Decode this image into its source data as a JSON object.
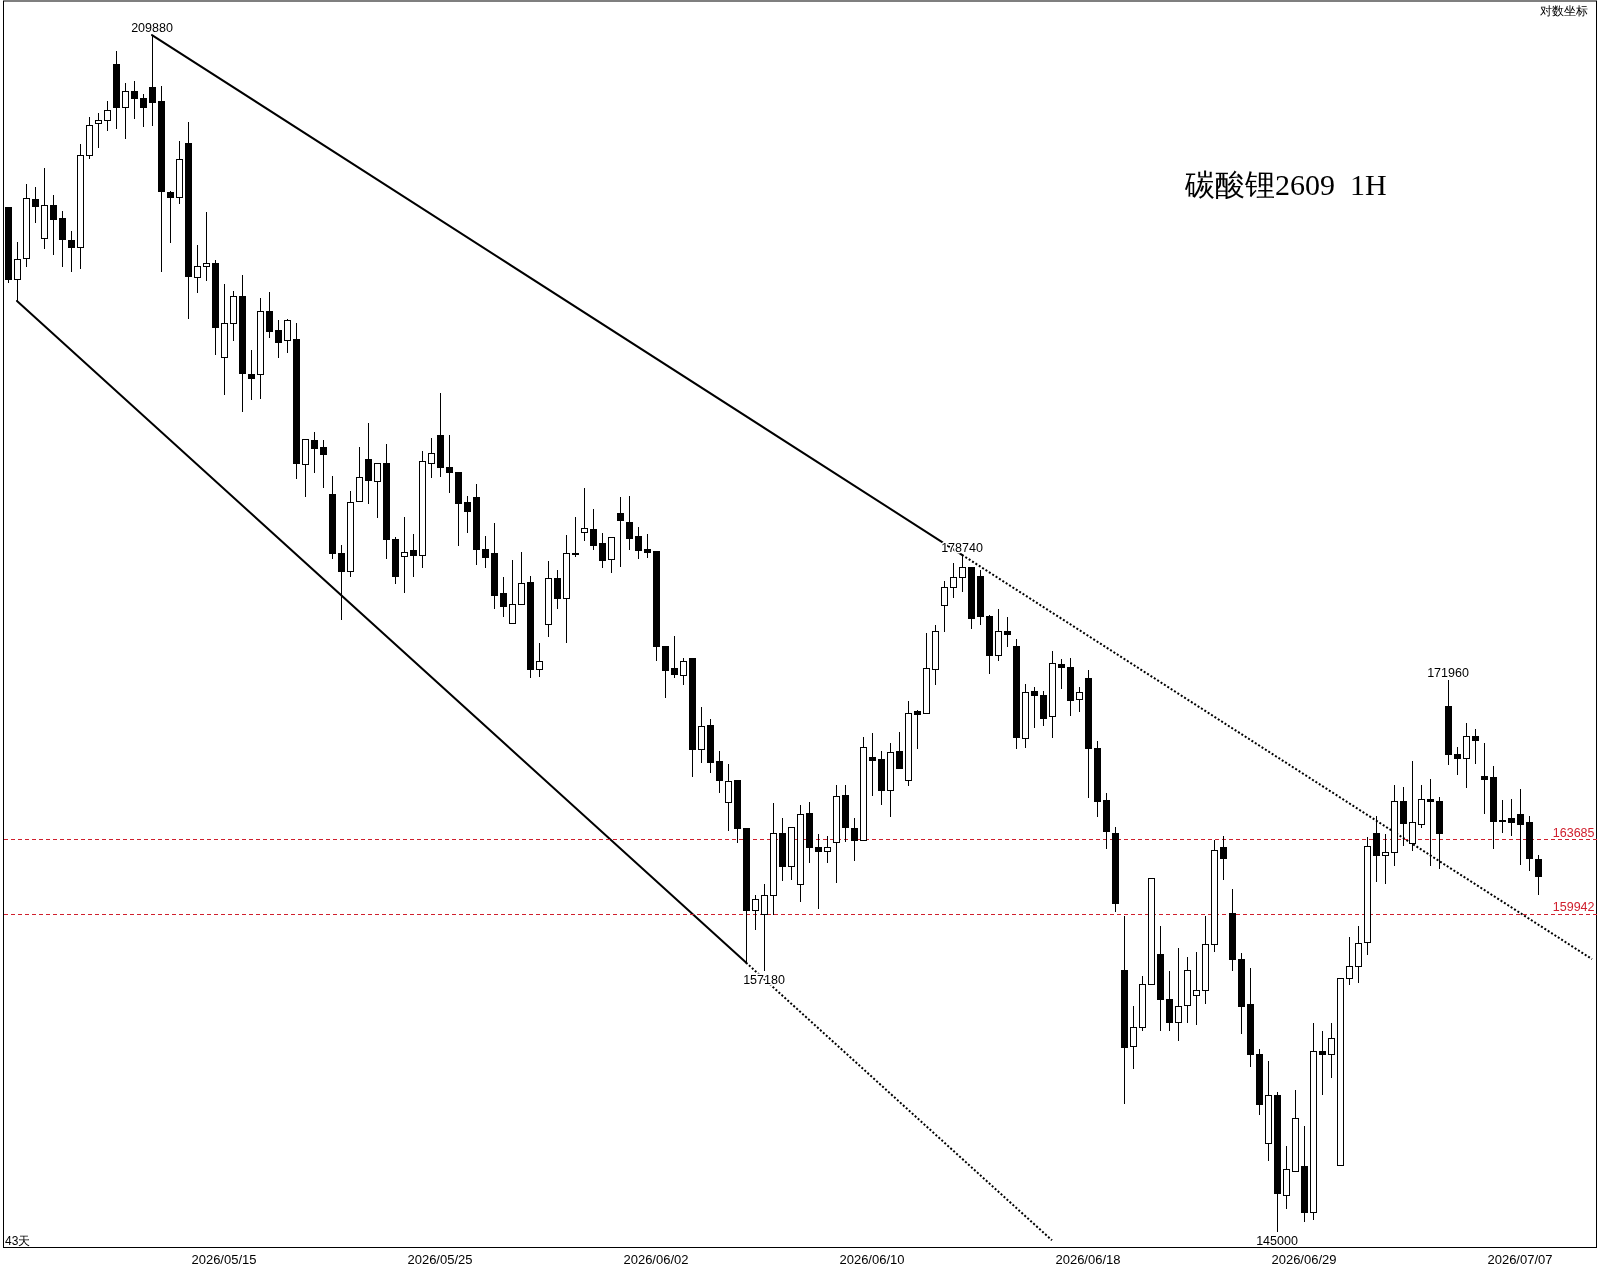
{
  "chart_data": {
    "type": "candlestick",
    "title": "碳酸锂2609  1H",
    "log": "y",
    "ylim": [
      144300,
      212100
    ],
    "tick_labels": "x",
    "categories": [
      null,
      null,
      null,
      null,
      null,
      null,
      null,
      null,
      null,
      null,
      null,
      null,
      null,
      null,
      null,
      null,
      null,
      null,
      null,
      null,
      null,
      null,
      null,
      null,
      "2026/05/15",
      null,
      null,
      null,
      null,
      null,
      null,
      null,
      null,
      null,
      null,
      null,
      null,
      null,
      null,
      null,
      null,
      null,
      null,
      null,
      null,
      null,
      null,
      null,
      "2026/05/25",
      null,
      null,
      null,
      null,
      null,
      null,
      null,
      null,
      null,
      null,
      null,
      null,
      null,
      null,
      null,
      null,
      null,
      null,
      null,
      null,
      null,
      null,
      null,
      "2026/06/02",
      null,
      null,
      null,
      null,
      null,
      null,
      null,
      null,
      null,
      null,
      null,
      null,
      null,
      null,
      null,
      null,
      null,
      null,
      null,
      null,
      null,
      null,
      null,
      "2026/06/10",
      null,
      null,
      null,
      null,
      null,
      null,
      null,
      null,
      null,
      null,
      null,
      null,
      null,
      null,
      null,
      null,
      null,
      null,
      null,
      null,
      null,
      null,
      null,
      "2026/06/18",
      null,
      null,
      null,
      null,
      null,
      null,
      null,
      null,
      null,
      null,
      null,
      null,
      null,
      null,
      null,
      null,
      null,
      null,
      null,
      null,
      null,
      null,
      null,
      "2026/06/29",
      null,
      null,
      null,
      null,
      null,
      null,
      null,
      null,
      null,
      null,
      null,
      null,
      null,
      null,
      null,
      null,
      null,
      null,
      null,
      null,
      null,
      null,
      null,
      "2026/07/07",
      null,
      null,
      null,
      null,
      null,
      null,
      null,
      null
    ],
    "ohlc": [
      [
        199000,
        199000,
        194380,
        194620
      ],
      [
        194620,
        196900,
        193320,
        195830
      ],
      [
        195890,
        200440,
        195380,
        199550
      ],
      [
        199490,
        200270,
        198020,
        199040
      ],
      [
        197100,
        201410,
        196470,
        199120
      ],
      [
        199120,
        199780,
        196070,
        198260
      ],
      [
        198320,
        198790,
        195380,
        197040
      ],
      [
        196980,
        197550,
        195080,
        196530
      ],
      [
        196530,
        202930,
        195220,
        202240
      ],
      [
        202220,
        204610,
        201970,
        204110
      ],
      [
        204250,
        204860,
        202700,
        204380
      ],
      [
        204440,
        205640,
        203770,
        205070
      ],
      [
        208010,
        208850,
        203850,
        205220
      ],
      [
        205240,
        206810,
        203260,
        206220
      ],
      [
        206220,
        206920,
        204520,
        205790
      ],
      [
        205810,
        206090,
        204020,
        205220
      ],
      [
        206520,
        209880,
        204060,
        205540
      ],
      [
        205640,
        206600,
        195080,
        199960
      ],
      [
        199940,
        200010,
        196800,
        199620
      ],
      [
        199620,
        203120,
        199190,
        201970
      ],
      [
        202970,
        204310,
        192230,
        194780
      ],
      [
        194740,
        196680,
        193780,
        195380
      ],
      [
        195410,
        198690,
        194540,
        195560
      ],
      [
        195560,
        195790,
        190120,
        191760
      ],
      [
        189990,
        194320,
        187790,
        191990
      ],
      [
        191990,
        193920,
        190950,
        193620
      ],
      [
        193620,
        194880,
        186790,
        189050
      ],
      [
        188990,
        190420,
        187500,
        188760
      ],
      [
        188990,
        193520,
        187570,
        192720
      ],
      [
        192670,
        193840,
        191110,
        191500
      ],
      [
        191540,
        192190,
        189960,
        190870
      ],
      [
        190950,
        192250,
        190260,
        192190
      ],
      [
        191010,
        192030,
        182960,
        183870
      ],
      [
        183810,
        185230,
        181980,
        185230
      ],
      [
        185180,
        185650,
        183330,
        184720
      ],
      [
        184790,
        185190,
        182490,
        184380
      ],
      [
        182130,
        183150,
        178530,
        178820
      ],
      [
        178820,
        179270,
        175180,
        177810
      ],
      [
        177810,
        182300,
        177500,
        181660
      ],
      [
        181720,
        184790,
        181660,
        183070
      ],
      [
        184090,
        186150,
        181550,
        182920
      ],
      [
        182850,
        183900,
        180800,
        183830
      ],
      [
        183830,
        184970,
        178530,
        179600
      ],
      [
        179600,
        179740,
        177150,
        177530
      ],
      [
        178640,
        180840,
        176660,
        178860
      ],
      [
        178990,
        179890,
        177530,
        178690
      ],
      [
        178690,
        184570,
        178030,
        183980
      ],
      [
        183870,
        185310,
        183050,
        184450
      ],
      [
        185480,
        187890,
        183090,
        183620
      ],
      [
        183600,
        185500,
        182170,
        183330
      ],
      [
        183370,
        183370,
        179230,
        181570
      ],
      [
        181660,
        182020,
        179970,
        181140
      ],
      [
        181940,
        182690,
        178190,
        179010
      ],
      [
        179050,
        179780,
        178000,
        178600
      ],
      [
        178790,
        180490,
        175760,
        176500
      ],
      [
        176590,
        177520,
        175320,
        175900
      ],
      [
        174960,
        178450,
        174960,
        175990
      ],
      [
        176030,
        178900,
        175990,
        177170
      ],
      [
        177190,
        177570,
        172050,
        172530
      ],
      [
        172530,
        173950,
        172130,
        172970
      ],
      [
        174940,
        178410,
        174270,
        177410
      ],
      [
        177410,
        177900,
        175760,
        176350
      ],
      [
        176350,
        179840,
        173950,
        178820
      ],
      [
        178820,
        180820,
        178640,
        178820
      ],
      [
        179990,
        182450,
        179520,
        180210
      ],
      [
        180120,
        181270,
        179010,
        179240
      ],
      [
        179340,
        179930,
        178030,
        178410
      ],
      [
        178490,
        179710,
        177720,
        179710
      ],
      [
        181010,
        181940,
        178080,
        180630
      ],
      [
        180560,
        182020,
        179010,
        179630
      ],
      [
        179730,
        180270,
        178530,
        178990
      ],
      [
        179060,
        179890,
        178560,
        178880
      ],
      [
        178950,
        178950,
        172990,
        173740
      ],
      [
        173770,
        173770,
        171020,
        172450
      ],
      [
        172580,
        174330,
        172050,
        172260
      ],
      [
        172210,
        173110,
        171690,
        172950
      ],
      [
        173080,
        173080,
        166870,
        168320
      ],
      [
        168320,
        170510,
        167620,
        169520
      ],
      [
        169570,
        169880,
        167100,
        167620
      ],
      [
        167660,
        168240,
        166040,
        166690
      ],
      [
        165580,
        167540,
        164140,
        166640
      ],
      [
        166690,
        166690,
        163500,
        164240
      ],
      [
        164270,
        164270,
        157580,
        160130
      ],
      [
        160130,
        160910,
        159180,
        160690
      ],
      [
        159950,
        161450,
        157180,
        160860
      ],
      [
        160860,
        165560,
        159910,
        164000
      ],
      [
        164000,
        164760,
        161620,
        162320
      ],
      [
        162320,
        164310,
        161650,
        164310
      ],
      [
        161440,
        165440,
        160570,
        164970
      ],
      [
        165020,
        165610,
        162520,
        163300
      ],
      [
        163300,
        163970,
        160200,
        163070
      ],
      [
        163070,
        163870,
        162520,
        163300
      ],
      [
        163530,
        166450,
        161520,
        165870
      ],
      [
        165940,
        166450,
        163580,
        164290
      ],
      [
        164260,
        164760,
        162600,
        163630
      ],
      [
        163630,
        168940,
        163630,
        168420
      ],
      [
        167900,
        169180,
        165900,
        167720
      ],
      [
        167760,
        168210,
        165440,
        166180
      ],
      [
        166180,
        168630,
        164810,
        168160
      ],
      [
        168180,
        169230,
        167310,
        167310
      ],
      [
        166690,
        170850,
        166420,
        170200
      ],
      [
        170270,
        170370,
        168330,
        170160
      ],
      [
        170200,
        174490,
        170160,
        172580
      ],
      [
        172530,
        174910,
        171690,
        174580
      ],
      [
        175950,
        177320,
        174540,
        176960
      ],
      [
        176960,
        178300,
        176390,
        177500
      ],
      [
        177500,
        178740,
        176710,
        178050
      ],
      [
        178050,
        178050,
        174670,
        175250
      ],
      [
        177570,
        177900,
        174910,
        175350
      ],
      [
        175390,
        175450,
        172280,
        173250
      ],
      [
        173250,
        175770,
        172990,
        174580
      ],
      [
        174580,
        175320,
        173740,
        174400
      ],
      [
        173770,
        174130,
        168330,
        168920
      ],
      [
        168890,
        171750,
        168400,
        171310
      ],
      [
        171340,
        171600,
        169440,
        171130
      ],
      [
        171160,
        171370,
        169530,
        169910
      ],
      [
        170020,
        173510,
        168920,
        172850
      ],
      [
        172810,
        173060,
        171460,
        172630
      ],
      [
        172640,
        173130,
        170060,
        170860
      ],
      [
        170940,
        171580,
        170270,
        171280
      ],
      [
        172020,
        172490,
        165800,
        168340
      ],
      [
        168340,
        168760,
        164820,
        165640
      ],
      [
        165660,
        166070,
        163220,
        164070
      ],
      [
        163970,
        164310,
        160060,
        160460
      ],
      [
        157200,
        159870,
        150840,
        153510
      ],
      [
        153550,
        155480,
        152470,
        154430
      ],
      [
        154430,
        156930,
        154280,
        156500
      ],
      [
        156500,
        161710,
        156500,
        161710
      ],
      [
        157980,
        159370,
        154280,
        155770
      ],
      [
        155770,
        157160,
        154280,
        154710
      ],
      [
        154710,
        158290,
        153800,
        155480
      ],
      [
        155520,
        157840,
        154660,
        157200
      ],
      [
        156000,
        158100,
        154560,
        156230
      ],
      [
        156230,
        159870,
        155580,
        158470
      ],
      [
        158470,
        163685,
        158100,
        163120
      ],
      [
        163260,
        163870,
        161650,
        162740
      ],
      [
        160000,
        161180,
        157180,
        157710
      ],
      [
        157710,
        158060,
        154140,
        155460
      ],
      [
        155540,
        157320,
        152590,
        153190
      ],
      [
        153190,
        153440,
        150340,
        150840
      ],
      [
        148990,
        152870,
        148220,
        151220
      ],
      [
        151220,
        151400,
        145000,
        146710
      ],
      [
        146650,
        148900,
        146040,
        147800
      ],
      [
        147740,
        151500,
        147740,
        150190
      ],
      [
        147980,
        149820,
        145440,
        145890
      ],
      [
        145890,
        154660,
        145530,
        153290
      ],
      [
        153290,
        154280,
        151250,
        153170
      ],
      [
        153150,
        154660,
        152060,
        153910
      ],
      [
        148020,
        156790,
        148020,
        156790
      ],
      [
        156810,
        158840,
        156500,
        157410
      ],
      [
        157400,
        159350,
        156580,
        158530
      ],
      [
        158550,
        163810,
        157960,
        163320
      ],
      [
        163970,
        164880,
        161550,
        162860
      ],
      [
        162900,
        163970,
        161450,
        163020
      ],
      [
        163020,
        166480,
        162350,
        165600
      ],
      [
        165600,
        166380,
        163360,
        164520
      ],
      [
        163500,
        167720,
        163100,
        164540
      ],
      [
        164470,
        166480,
        164270,
        165700
      ],
      [
        165700,
        166790,
        162350,
        165600
      ],
      [
        165600,
        165860,
        162210,
        164010
      ],
      [
        170580,
        171960,
        167510,
        168030
      ],
      [
        168070,
        168430,
        166990,
        167820
      ],
      [
        167820,
        169680,
        166310,
        168970
      ],
      [
        168970,
        169390,
        167550,
        168760
      ],
      [
        166930,
        168630,
        164980,
        166730
      ],
      [
        166830,
        167450,
        163220,
        164580
      ],
      [
        164640,
        165700,
        164030,
        164580
      ],
      [
        164740,
        165760,
        163870,
        164540
      ],
      [
        164940,
        166270,
        162420,
        164430
      ],
      [
        164540,
        164880,
        162090,
        162720
      ],
      [
        162700,
        162900,
        160900,
        161850
      ],
      null,
      null,
      null,
      null,
      null,
      null
    ],
    "series": [
      {
        "type": "line",
        "color": "#000000",
        "line_style": "solid",
        "values": [
          null,
          193320,
          null,
          null,
          null,
          null,
          null,
          null,
          null,
          null,
          null,
          null,
          null,
          null,
          null,
          null,
          null,
          null,
          null,
          null,
          null,
          null,
          null,
          null,
          null,
          null,
          null,
          null,
          null,
          null,
          null,
          null,
          null,
          null,
          null,
          null,
          null,
          null,
          null,
          null,
          null,
          null,
          null,
          null,
          null,
          null,
          null,
          null,
          null,
          null,
          null,
          null,
          null,
          null,
          null,
          null,
          null,
          null,
          null,
          null,
          null,
          null,
          null,
          null,
          null,
          null,
          null,
          null,
          null,
          null,
          null,
          null,
          null,
          null,
          null,
          null,
          null,
          null,
          null,
          null,
          null,
          null,
          157580,
          null,
          null,
          null,
          null,
          null,
          null,
          null,
          null,
          null,
          null,
          null,
          null,
          null,
          null,
          null,
          null,
          null,
          null,
          null,
          null,
          null,
          null,
          null,
          null,
          null,
          null,
          null,
          null,
          null,
          null,
          null,
          null,
          null,
          null,
          null,
          null,
          null,
          null,
          null,
          null,
          null,
          null,
          null,
          null,
          null,
          null,
          null,
          null,
          null,
          null,
          null,
          null,
          null,
          null,
          null,
          null,
          null,
          null,
          null,
          null,
          null,
          null,
          null,
          null,
          null,
          null,
          null,
          null,
          null,
          null,
          null,
          null,
          null,
          null,
          null,
          null,
          null,
          null,
          null,
          null,
          null,
          null,
          null,
          null,
          null,
          null,
          null,
          null,
          null,
          null,
          null,
          null,
          null,
          null
        ]
      },
      {
        "type": "line",
        "color": "#000000",
        "line_style": "dotted",
        "values": [
          null,
          null,
          null,
          null,
          null,
          null,
          null,
          null,
          null,
          null,
          null,
          null,
          null,
          null,
          null,
          null,
          null,
          null,
          null,
          null,
          null,
          null,
          null,
          null,
          null,
          null,
          null,
          null,
          null,
          null,
          null,
          null,
          null,
          null,
          null,
          null,
          null,
          null,
          null,
          null,
          null,
          null,
          null,
          null,
          null,
          null,
          null,
          null,
          null,
          null,
          null,
          null,
          null,
          null,
          null,
          null,
          null,
          null,
          null,
          null,
          null,
          null,
          null,
          null,
          null,
          null,
          null,
          null,
          null,
          null,
          null,
          null,
          null,
          null,
          null,
          null,
          null,
          null,
          null,
          null,
          null,
          null,
          157580,
          null,
          null,
          null,
          null,
          null,
          null,
          null,
          null,
          null,
          null,
          null,
          null,
          null,
          null,
          null,
          null,
          null,
          null,
          null,
          null,
          null,
          null,
          null,
          null,
          null,
          null,
          null,
          null,
          null,
          null,
          null,
          null,
          null,
          144620,
          null,
          null,
          null,
          null,
          null,
          null,
          null,
          null,
          null,
          null,
          null,
          null,
          null,
          null,
          null,
          null,
          null,
          null,
          null,
          null,
          null,
          null,
          null,
          null,
          null,
          null,
          null,
          null,
          null,
          null,
          null,
          null,
          null,
          null,
          null,
          null,
          null,
          null,
          null,
          null,
          null,
          null,
          null,
          null,
          null,
          null,
          null,
          null,
          null,
          null,
          null,
          null,
          null,
          null,
          null,
          null,
          null,
          null,
          null,
          null
        ]
      },
      {
        "type": "line",
        "color": "#000000",
        "line_style": "solid",
        "values": [
          null,
          null,
          null,
          null,
          null,
          null,
          null,
          null,
          null,
          null,
          null,
          null,
          null,
          null,
          null,
          null,
          209880,
          null,
          null,
          null,
          null,
          null,
          null,
          null,
          null,
          null,
          null,
          null,
          null,
          null,
          null,
          null,
          null,
          null,
          null,
          null,
          null,
          null,
          null,
          null,
          null,
          null,
          null,
          null,
          null,
          null,
          null,
          null,
          null,
          null,
          null,
          null,
          null,
          null,
          null,
          null,
          null,
          null,
          null,
          null,
          null,
          null,
          null,
          null,
          null,
          null,
          null,
          null,
          null,
          null,
          null,
          null,
          null,
          null,
          null,
          null,
          null,
          null,
          null,
          null,
          null,
          null,
          null,
          null,
          null,
          null,
          null,
          null,
          null,
          null,
          null,
          null,
          null,
          null,
          null,
          null,
          null,
          null,
          null,
          null,
          null,
          null,
          null,
          null,
          null,
          null,
          178740,
          null,
          null,
          null,
          null,
          null,
          null,
          null,
          null,
          null,
          null,
          null,
          null,
          null,
          null,
          null,
          null,
          null,
          null,
          null,
          null,
          null,
          null,
          null,
          null,
          null,
          null,
          null,
          null,
          null,
          null,
          null,
          null,
          null,
          null,
          null,
          null,
          null,
          null,
          null,
          null,
          null,
          null,
          null,
          null,
          null,
          null,
          null,
          null,
          null,
          null,
          null,
          null,
          null,
          null,
          null,
          null,
          null,
          null,
          null,
          null,
          null,
          null,
          null,
          null,
          null,
          null,
          null,
          null,
          null,
          null
        ]
      },
      {
        "type": "line",
        "color": "#000000",
        "line_style": "dotted",
        "values": [
          null,
          null,
          null,
          null,
          null,
          null,
          null,
          null,
          null,
          null,
          null,
          null,
          null,
          null,
          null,
          null,
          null,
          null,
          null,
          null,
          null,
          null,
          null,
          null,
          null,
          null,
          null,
          null,
          null,
          null,
          null,
          null,
          null,
          null,
          null,
          null,
          null,
          null,
          null,
          null,
          null,
          null,
          null,
          null,
          null,
          null,
          null,
          null,
          null,
          null,
          null,
          null,
          null,
          null,
          null,
          null,
          null,
          null,
          null,
          null,
          null,
          null,
          null,
          null,
          null,
          null,
          null,
          null,
          null,
          null,
          null,
          null,
          null,
          null,
          null,
          null,
          null,
          null,
          null,
          null,
          null,
          null,
          null,
          null,
          null,
          null,
          null,
          null,
          null,
          null,
          null,
          null,
          null,
          null,
          null,
          null,
          null,
          null,
          null,
          null,
          null,
          null,
          null,
          null,
          null,
          null,
          178740,
          null,
          null,
          null,
          null,
          null,
          null,
          null,
          null,
          null,
          null,
          null,
          null,
          null,
          null,
          null,
          null,
          null,
          null,
          null,
          null,
          null,
          null,
          null,
          null,
          null,
          null,
          null,
          null,
          null,
          null,
          null,
          null,
          null,
          null,
          null,
          null,
          null,
          null,
          null,
          null,
          null,
          null,
          null,
          null,
          null,
          null,
          null,
          null,
          null,
          null,
          null,
          null,
          null,
          null,
          null,
          null,
          null,
          null,
          null,
          null,
          null,
          null,
          null,
          null,
          null,
          null,
          null,
          null,
          null,
          157750
        ]
      }
    ],
    "ref_lines": [
      {
        "axis": "y",
        "value": 163685,
        "label": "163685",
        "color": "#d0202e",
        "line_style": "dashed"
      },
      {
        "axis": "y",
        "value": 159942,
        "label": "159942",
        "color": "#d0202e",
        "line_style": "dashed"
      }
    ],
    "annotations": [
      "对数坐标",
      "43天",
      {
        "text": "209880",
        "y": 209880
      },
      {
        "text": "178740",
        "y": 178740
      },
      {
        "text": "157180",
        "y": 157180
      },
      {
        "text": "171960",
        "y": 171960
      },
      {
        "text": "145000",
        "y": 145000
      }
    ]
  }
}
